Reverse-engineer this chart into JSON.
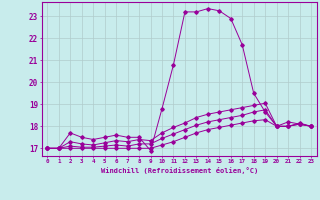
{
  "xlabel": "Windchill (Refroidissement éolien,°C)",
  "background_color": "#c8ecec",
  "line_color": "#990099",
  "grid_color": "#b0cccc",
  "yticks": [
    17,
    18,
    19,
    20,
    21,
    22,
    23
  ],
  "xticks": [
    0,
    1,
    2,
    3,
    4,
    5,
    6,
    7,
    8,
    9,
    10,
    11,
    12,
    13,
    14,
    15,
    16,
    17,
    18,
    19,
    20,
    21,
    22,
    23
  ],
  "line1_x": [
    0,
    1,
    2,
    3,
    4,
    5,
    6,
    7,
    8,
    9,
    10,
    11,
    12,
    13,
    14,
    15,
    16,
    17,
    18,
    19,
    20,
    21,
    22,
    23
  ],
  "line1_y": [
    17.0,
    17.0,
    17.7,
    17.5,
    17.4,
    17.5,
    17.6,
    17.5,
    17.5,
    16.9,
    18.8,
    20.8,
    23.2,
    23.2,
    23.35,
    23.25,
    22.9,
    21.7,
    19.5,
    18.65,
    18.0,
    18.2,
    18.1,
    18.0
  ],
  "line2_x": [
    0,
    1,
    2,
    3,
    4,
    5,
    6,
    7,
    8,
    9,
    10,
    11,
    12,
    13,
    14,
    15,
    16,
    17,
    18,
    19,
    20,
    21,
    22,
    23
  ],
  "line2_y": [
    17.0,
    17.0,
    17.3,
    17.2,
    17.15,
    17.25,
    17.35,
    17.3,
    17.4,
    17.35,
    17.7,
    17.95,
    18.15,
    18.4,
    18.55,
    18.65,
    18.75,
    18.85,
    18.95,
    19.05,
    18.0,
    18.0,
    18.15,
    18.0
  ],
  "line3_x": [
    0,
    1,
    2,
    3,
    4,
    5,
    6,
    7,
    8,
    9,
    10,
    11,
    12,
    13,
    14,
    15,
    16,
    17,
    18,
    19,
    20,
    21,
    22,
    23
  ],
  "line3_y": [
    17.0,
    17.0,
    17.1,
    17.05,
    17.05,
    17.1,
    17.15,
    17.1,
    17.2,
    17.2,
    17.45,
    17.65,
    17.85,
    18.05,
    18.2,
    18.3,
    18.4,
    18.5,
    18.65,
    18.75,
    18.0,
    18.0,
    18.1,
    18.0
  ],
  "line4_x": [
    0,
    1,
    2,
    3,
    4,
    5,
    6,
    7,
    8,
    9,
    10,
    11,
    12,
    13,
    14,
    15,
    16,
    17,
    18,
    19,
    20,
    21,
    22,
    23
  ],
  "line4_y": [
    17.0,
    17.0,
    17.0,
    17.0,
    17.0,
    17.0,
    17.0,
    17.0,
    17.0,
    17.0,
    17.15,
    17.3,
    17.5,
    17.7,
    17.85,
    17.95,
    18.05,
    18.15,
    18.25,
    18.3,
    18.0,
    18.0,
    18.1,
    18.0
  ]
}
